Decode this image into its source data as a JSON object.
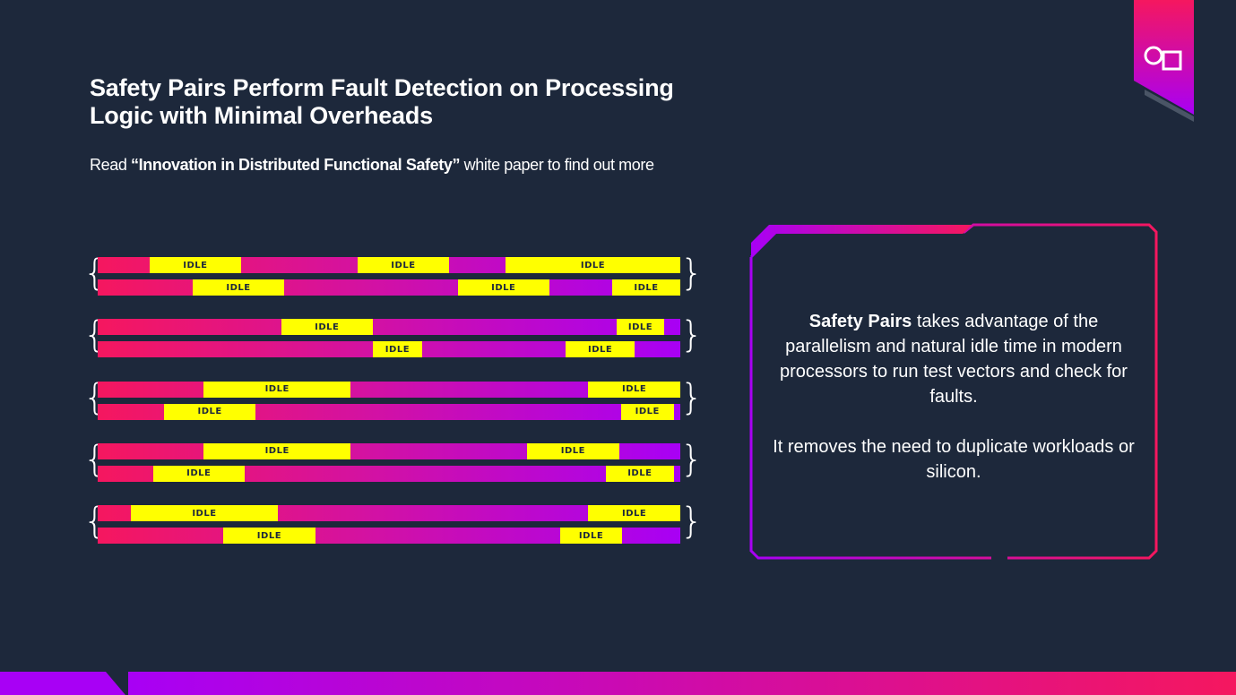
{
  "title": "Safety Pairs Perform Fault Detection on Processing Logic with Minimal Overheads",
  "subtitle": {
    "prefix": "Read ",
    "bold": "“Innovation in Distributed Functional Safety”",
    "suffix": " white paper to find out more"
  },
  "idle_label": "IDLE",
  "colors": {
    "background": "#1d283b",
    "bar_start": "#f5175f",
    "bar_end": "#a800f5",
    "idle": "#ffff00"
  },
  "pairs_idle_percent": [
    [
      [
        [
          8.9,
          24.6
        ],
        [
          44.6,
          60.3
        ],
        [
          70,
          100
        ]
      ],
      [
        [
          16.3,
          32
        ],
        [
          61.8,
          77.5
        ],
        [
          88.3,
          100
        ]
      ]
    ],
    [
      [
        [
          31.5,
          47.2
        ],
        [
          89.1,
          97.2
        ]
      ],
      [
        [
          47.2,
          55.7
        ],
        [
          80.3,
          92.2
        ]
      ]
    ],
    [
      [
        [
          18.2,
          43.4
        ],
        [
          84.2,
          100
        ]
      ],
      [
        [
          11.4,
          27.1
        ],
        [
          89.8,
          98.9
        ]
      ]
    ],
    [
      [
        [
          18.2,
          43.4
        ],
        [
          73.7,
          89.5
        ]
      ],
      [
        [
          9.5,
          25.2
        ],
        [
          87.2,
          98.9
        ]
      ]
    ],
    [
      [
        [
          5.7,
          30.9
        ],
        [
          84.2,
          100
        ]
      ],
      [
        [
          21.5,
          37.4
        ],
        [
          79.4,
          90
        ]
      ]
    ]
  ],
  "callout": {
    "bold": "Safety Pairs",
    "line1": " takes advantage of the parallelism and natural idle time in modern processors to run test vectors and check for faults.",
    "line2": "It removes the need to duplicate workloads or silicon."
  },
  "logo_icon": "circle-square-icon"
}
